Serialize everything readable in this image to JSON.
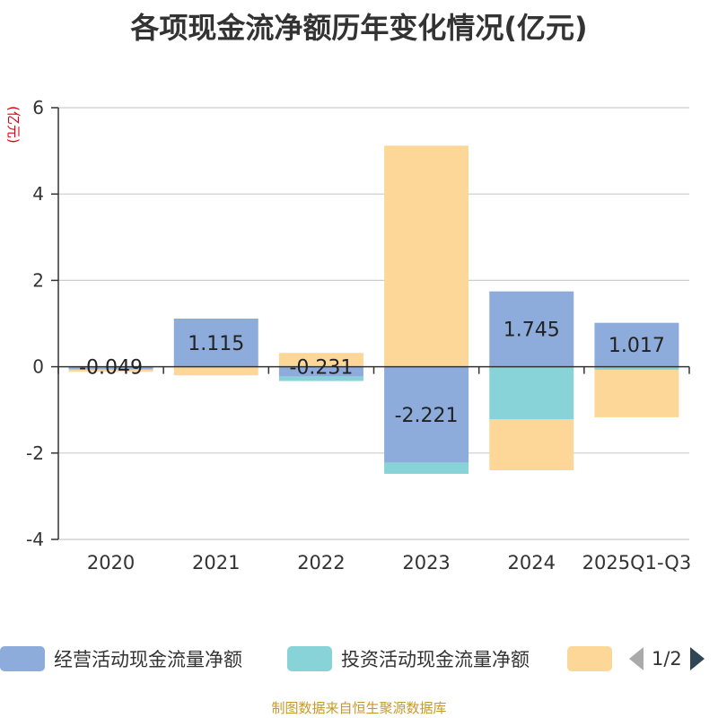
{
  "chart_data": {
    "type": "bar",
    "stacked": true,
    "title": "各项现金流净额历年变化情况(亿元)",
    "ylabel": "(亿元)",
    "xlabel": "",
    "ylim": [
      -4,
      6
    ],
    "yticks": [
      -4,
      -2,
      0,
      2,
      4,
      6
    ],
    "categories": [
      "2020",
      "2021",
      "2022",
      "2023",
      "2024",
      "2025Q1-Q3"
    ],
    "series": [
      {
        "name": "经营活动现金流量净额",
        "color": "#8eacdb",
        "values": [
          -0.049,
          1.115,
          -0.231,
          -2.221,
          1.745,
          1.017
        ],
        "labels": [
          "-0.049",
          "1.115",
          "-0.231",
          "-2.221",
          "1.745",
          "1.017"
        ]
      },
      {
        "name": "投资活动现金流量净额",
        "color": "#87d3d7",
        "values": [
          -0.02,
          0.0,
          -0.1,
          -0.26,
          -1.22,
          -0.07
        ]
      },
      {
        "name": "",
        "color": "#fdd798",
        "values": [
          -0.05,
          -0.2,
          0.32,
          5.12,
          -1.18,
          -1.1
        ]
      }
    ]
  },
  "legend": {
    "items": [
      {
        "label": "经营活动现金流量净额",
        "color": "#8eacdb"
      },
      {
        "label": "投资活动现金流量净额",
        "color": "#87d3d7"
      },
      {
        "label": "",
        "color": "#fdd798"
      }
    ],
    "page": "1/2"
  },
  "footer": {
    "source": "制图数据来自恒生聚源数据库"
  }
}
